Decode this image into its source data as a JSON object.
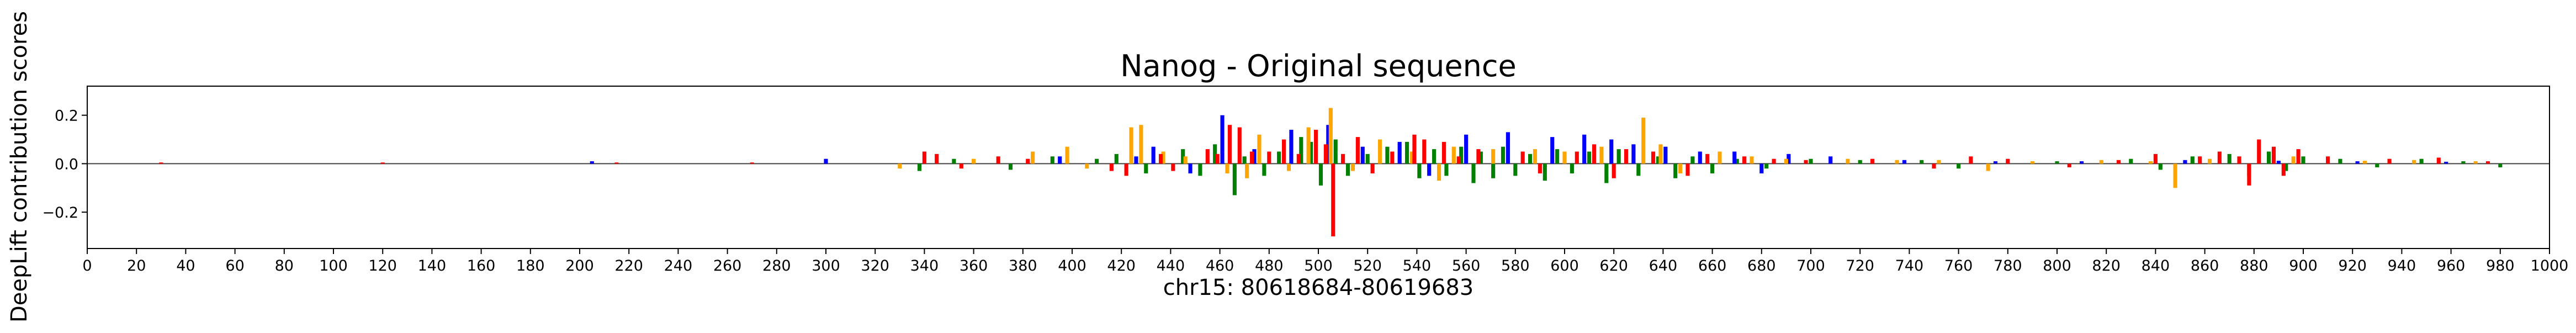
{
  "chart_data": {
    "type": "bar",
    "title": "Nanog - Original sequence",
    "xlabel": "chr15: 80618684-80619683",
    "ylabel": "DeepLift contribution scores",
    "xlim": [
      0,
      1000
    ],
    "ylim": [
      -0.35,
      0.32
    ],
    "x_ticks": [
      0,
      20,
      40,
      60,
      80,
      100,
      120,
      140,
      160,
      180,
      200,
      220,
      240,
      260,
      280,
      300,
      320,
      340,
      360,
      380,
      400,
      420,
      440,
      460,
      480,
      500,
      520,
      540,
      560,
      580,
      600,
      620,
      640,
      660,
      680,
      700,
      720,
      740,
      760,
      780,
      800,
      820,
      840,
      860,
      880,
      900,
      920,
      940,
      960,
      980,
      1000
    ],
    "y_ticks": [
      0.2,
      0.0,
      -0.2
    ],
    "y_tick_labels": [
      "0.2",
      "0.0",
      "−0.2"
    ],
    "grid": false,
    "legend": "none",
    "base_colors": {
      "A": "#008000",
      "C": "#0000ff",
      "G": "#ffa500",
      "T": "#ff0000"
    },
    "series": [
      {
        "base": "A",
        "points": [
          [
            338,
            -0.03
          ],
          [
            352,
            0.02
          ],
          [
            375,
            -0.025
          ],
          [
            392,
            0.03
          ],
          [
            410,
            0.02
          ],
          [
            418,
            0.04
          ],
          [
            430,
            -0.04
          ],
          [
            445,
            0.06
          ],
          [
            452,
            -0.05
          ],
          [
            458,
            0.08
          ],
          [
            466,
            -0.13
          ],
          [
            470,
            0.03
          ],
          [
            478,
            -0.05
          ],
          [
            484,
            0.05
          ],
          [
            493,
            0.11
          ],
          [
            497,
            0.09
          ],
          [
            501,
            -0.09
          ],
          [
            507,
            0.1
          ],
          [
            512,
            -0.05
          ],
          [
            520,
            0.04
          ],
          [
            528,
            0.07
          ],
          [
            536,
            0.09
          ],
          [
            541,
            -0.06
          ],
          [
            547,
            0.06
          ],
          [
            552,
            -0.05
          ],
          [
            558,
            0.07
          ],
          [
            563,
            -0.08
          ],
          [
            566,
            0.05
          ],
          [
            571,
            -0.06
          ],
          [
            575,
            0.07
          ],
          [
            580,
            -0.05
          ],
          [
            586,
            0.04
          ],
          [
            592,
            -0.07
          ],
          [
            597,
            0.06
          ],
          [
            603,
            -0.04
          ],
          [
            610,
            0.05
          ],
          [
            617,
            -0.08
          ],
          [
            622,
            0.06
          ],
          [
            630,
            -0.05
          ],
          [
            638,
            0.03
          ],
          [
            645,
            -0.06
          ],
          [
            652,
            0.03
          ],
          [
            660,
            -0.04
          ],
          [
            670,
            0.02
          ],
          [
            682,
            -0.02
          ],
          [
            700,
            0.02
          ],
          [
            720,
            0.015
          ],
          [
            745,
            0.015
          ],
          [
            760,
            -0.02
          ],
          [
            800,
            0.01
          ],
          [
            830,
            0.02
          ],
          [
            842,
            -0.025
          ],
          [
            855,
            0.03
          ],
          [
            870,
            0.04
          ],
          [
            878,
            -0.05
          ],
          [
            886,
            0.05
          ],
          [
            893,
            -0.03
          ],
          [
            900,
            0.03
          ],
          [
            915,
            0.02
          ],
          [
            930,
            -0.015
          ],
          [
            948,
            0.02
          ],
          [
            965,
            0.01
          ],
          [
            980,
            -0.015
          ]
        ]
      },
      {
        "base": "C",
        "points": [
          [
            205,
            0.01
          ],
          [
            300,
            0.02
          ],
          [
            395,
            0.03
          ],
          [
            426,
            0.03
          ],
          [
            433,
            0.07
          ],
          [
            448,
            -0.04
          ],
          [
            461,
            0.2
          ],
          [
            474,
            0.06
          ],
          [
            489,
            0.14
          ],
          [
            504,
            0.16
          ],
          [
            518,
            0.07
          ],
          [
            533,
            0.09
          ],
          [
            545,
            -0.05
          ],
          [
            560,
            0.12
          ],
          [
            577,
            0.13
          ],
          [
            595,
            0.11
          ],
          [
            608,
            0.12
          ],
          [
            619,
            0.1
          ],
          [
            628,
            0.08
          ],
          [
            641,
            0.07
          ],
          [
            655,
            0.05
          ],
          [
            669,
            0.05
          ],
          [
            680,
            -0.04
          ],
          [
            691,
            0.04
          ],
          [
            708,
            0.03
          ],
          [
            738,
            0.015
          ],
          [
            775,
            0.01
          ],
          [
            810,
            0.01
          ],
          [
            852,
            0.015
          ],
          [
            890,
            0.012
          ],
          [
            922,
            0.01
          ],
          [
            958,
            0.008
          ]
        ]
      },
      {
        "base": "G",
        "points": [
          [
            330,
            -0.02
          ],
          [
            360,
            0.02
          ],
          [
            384,
            0.05
          ],
          [
            398,
            0.07
          ],
          [
            406,
            -0.02
          ],
          [
            424,
            0.15
          ],
          [
            428,
            0.16
          ],
          [
            437,
            0.05
          ],
          [
            446,
            0.03
          ],
          [
            463,
            -0.04
          ],
          [
            471,
            -0.06
          ],
          [
            476,
            0.12
          ],
          [
            488,
            -0.03
          ],
          [
            496,
            0.15
          ],
          [
            505,
            0.23
          ],
          [
            514,
            -0.03
          ],
          [
            525,
            0.1
          ],
          [
            538,
            0.05
          ],
          [
            549,
            -0.07
          ],
          [
            555,
            0.07
          ],
          [
            571,
            0.06
          ],
          [
            588,
            0.06
          ],
          [
            600,
            0.05
          ],
          [
            615,
            0.07
          ],
          [
            632,
            0.19
          ],
          [
            639,
            0.08
          ],
          [
            647,
            -0.04
          ],
          [
            663,
            0.05
          ],
          [
            676,
            0.03
          ],
          [
            690,
            0.02
          ],
          [
            715,
            0.02
          ],
          [
            735,
            0.015
          ],
          [
            752,
            0.015
          ],
          [
            772,
            -0.03
          ],
          [
            790,
            0.01
          ],
          [
            818,
            0.015
          ],
          [
            838,
            0.01
          ],
          [
            848,
            -0.1
          ],
          [
            862,
            0.02
          ],
          [
            896,
            0.03
          ],
          [
            925,
            0.012
          ],
          [
            945,
            0.015
          ],
          [
            970,
            0.01
          ]
        ]
      },
      {
        "base": "T",
        "points": [
          [
            30,
            0.005
          ],
          [
            120,
            0.005
          ],
          [
            215,
            0.005
          ],
          [
            270,
            0.005
          ],
          [
            340,
            0.05
          ],
          [
            345,
            0.04
          ],
          [
            355,
            -0.02
          ],
          [
            370,
            0.03
          ],
          [
            382,
            0.02
          ],
          [
            416,
            -0.03
          ],
          [
            422,
            -0.05
          ],
          [
            436,
            0.04
          ],
          [
            441,
            -0.03
          ],
          [
            455,
            0.06
          ],
          [
            459,
            0.04
          ],
          [
            464,
            0.16
          ],
          [
            468,
            0.15
          ],
          [
            473,
            0.05
          ],
          [
            480,
            0.05
          ],
          [
            486,
            0.1
          ],
          [
            492,
            0.04
          ],
          [
            499,
            0.14
          ],
          [
            503,
            0.08
          ],
          [
            506,
            -0.3
          ],
          [
            510,
            0.04
          ],
          [
            516,
            0.11
          ],
          [
            522,
            -0.04
          ],
          [
            530,
            0.05
          ],
          [
            539,
            0.12
          ],
          [
            543,
            0.1
          ],
          [
            551,
            0.09
          ],
          [
            557,
            0.03
          ],
          [
            565,
            0.06
          ],
          [
            583,
            0.05
          ],
          [
            590,
            -0.04
          ],
          [
            605,
            0.05
          ],
          [
            612,
            0.08
          ],
          [
            620,
            -0.06
          ],
          [
            625,
            0.06
          ],
          [
            636,
            0.05
          ],
          [
            650,
            -0.05
          ],
          [
            658,
            0.04
          ],
          [
            673,
            0.03
          ],
          [
            685,
            0.02
          ],
          [
            698,
            0.015
          ],
          [
            725,
            0.02
          ],
          [
            750,
            -0.02
          ],
          [
            765,
            0.03
          ],
          [
            780,
            0.02
          ],
          [
            805,
            -0.015
          ],
          [
            825,
            0.015
          ],
          [
            840,
            0.04
          ],
          [
            858,
            0.03
          ],
          [
            866,
            0.05
          ],
          [
            874,
            0.03
          ],
          [
            878,
            -0.09
          ],
          [
            882,
            0.1
          ],
          [
            888,
            0.07
          ],
          [
            892,
            -0.05
          ],
          [
            898,
            0.06
          ],
          [
            910,
            0.03
          ],
          [
            935,
            0.02
          ],
          [
            955,
            0.025
          ],
          [
            975,
            0.01
          ]
        ]
      }
    ]
  }
}
